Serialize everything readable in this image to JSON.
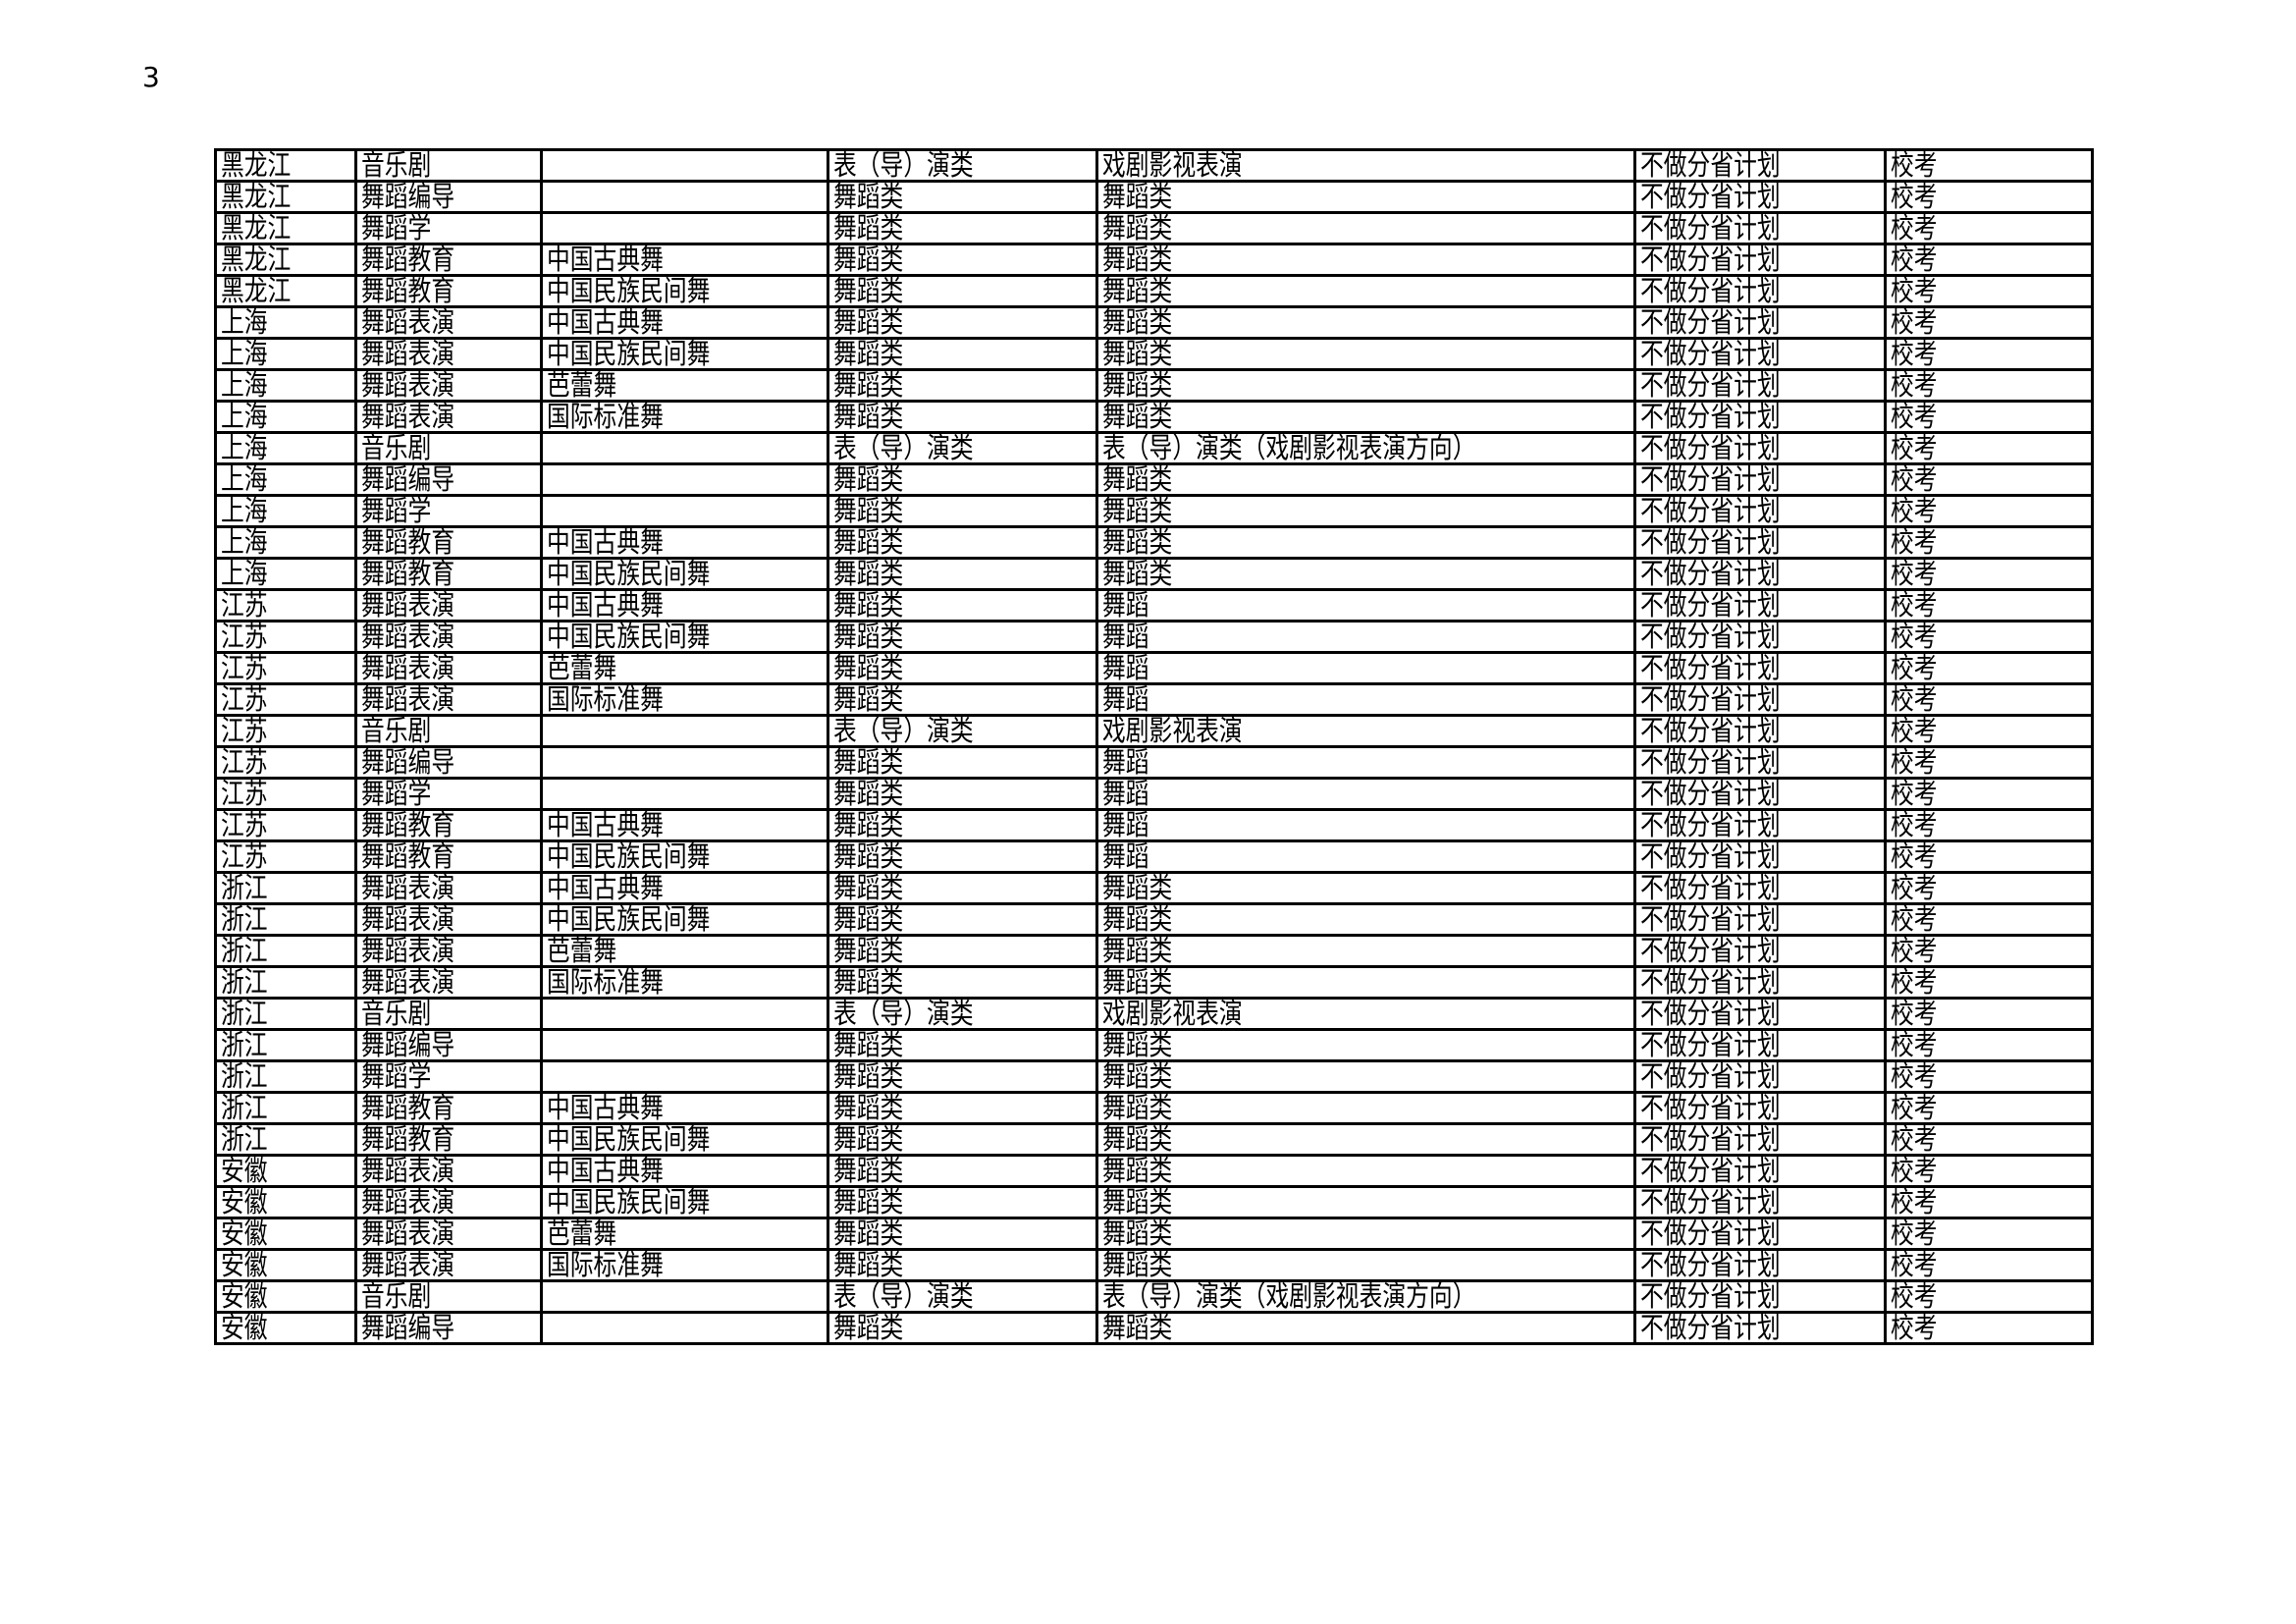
{
  "page_number": "3",
  "rows": [
    [
      "黑龙江",
      "音乐剧",
      "",
      "表（导）演类",
      "戏剧影视表演",
      "不做分省计划",
      "校考"
    ],
    [
      "黑龙江",
      "舞蹈编导",
      "",
      "舞蹈类",
      "舞蹈类",
      "不做分省计划",
      "校考"
    ],
    [
      "黑龙江",
      "舞蹈学",
      "",
      "舞蹈类",
      "舞蹈类",
      "不做分省计划",
      "校考"
    ],
    [
      "黑龙江",
      "舞蹈教育",
      "中国古典舞",
      "舞蹈类",
      "舞蹈类",
      "不做分省计划",
      "校考"
    ],
    [
      "黑龙江",
      "舞蹈教育",
      "中国民族民间舞",
      "舞蹈类",
      "舞蹈类",
      "不做分省计划",
      "校考"
    ],
    [
      "上海",
      "舞蹈表演",
      "中国古典舞",
      "舞蹈类",
      "舞蹈类",
      "不做分省计划",
      "校考"
    ],
    [
      "上海",
      "舞蹈表演",
      "中国民族民间舞",
      "舞蹈类",
      "舞蹈类",
      "不做分省计划",
      "校考"
    ],
    [
      "上海",
      "舞蹈表演",
      "芭蕾舞",
      "舞蹈类",
      "舞蹈类",
      "不做分省计划",
      "校考"
    ],
    [
      "上海",
      "舞蹈表演",
      "国际标准舞",
      "舞蹈类",
      "舞蹈类",
      "不做分省计划",
      "校考"
    ],
    [
      "上海",
      "音乐剧",
      "",
      "表（导）演类",
      "表（导）演类（戏剧影视表演方向）",
      "不做分省计划",
      "校考"
    ],
    [
      "上海",
      "舞蹈编导",
      "",
      "舞蹈类",
      "舞蹈类",
      "不做分省计划",
      "校考"
    ],
    [
      "上海",
      "舞蹈学",
      "",
      "舞蹈类",
      "舞蹈类",
      "不做分省计划",
      "校考"
    ],
    [
      "上海",
      "舞蹈教育",
      "中国古典舞",
      "舞蹈类",
      "舞蹈类",
      "不做分省计划",
      "校考"
    ],
    [
      "上海",
      "舞蹈教育",
      "中国民族民间舞",
      "舞蹈类",
      "舞蹈类",
      "不做分省计划",
      "校考"
    ],
    [
      "江苏",
      "舞蹈表演",
      "中国古典舞",
      "舞蹈类",
      "舞蹈",
      "不做分省计划",
      "校考"
    ],
    [
      "江苏",
      "舞蹈表演",
      "中国民族民间舞",
      "舞蹈类",
      "舞蹈",
      "不做分省计划",
      "校考"
    ],
    [
      "江苏",
      "舞蹈表演",
      "芭蕾舞",
      "舞蹈类",
      "舞蹈",
      "不做分省计划",
      "校考"
    ],
    [
      "江苏",
      "舞蹈表演",
      "国际标准舞",
      "舞蹈类",
      "舞蹈",
      "不做分省计划",
      "校考"
    ],
    [
      "江苏",
      "音乐剧",
      "",
      "表（导）演类",
      "戏剧影视表演",
      "不做分省计划",
      "校考"
    ],
    [
      "江苏",
      "舞蹈编导",
      "",
      "舞蹈类",
      "舞蹈",
      "不做分省计划",
      "校考"
    ],
    [
      "江苏",
      "舞蹈学",
      "",
      "舞蹈类",
      "舞蹈",
      "不做分省计划",
      "校考"
    ],
    [
      "江苏",
      "舞蹈教育",
      "中国古典舞",
      "舞蹈类",
      "舞蹈",
      "不做分省计划",
      "校考"
    ],
    [
      "江苏",
      "舞蹈教育",
      "中国民族民间舞",
      "舞蹈类",
      "舞蹈",
      "不做分省计划",
      "校考"
    ],
    [
      "浙江",
      "舞蹈表演",
      "中国古典舞",
      "舞蹈类",
      "舞蹈类",
      "不做分省计划",
      "校考"
    ],
    [
      "浙江",
      "舞蹈表演",
      "中国民族民间舞",
      "舞蹈类",
      "舞蹈类",
      "不做分省计划",
      "校考"
    ],
    [
      "浙江",
      "舞蹈表演",
      "芭蕾舞",
      "舞蹈类",
      "舞蹈类",
      "不做分省计划",
      "校考"
    ],
    [
      "浙江",
      "舞蹈表演",
      "国际标准舞",
      "舞蹈类",
      "舞蹈类",
      "不做分省计划",
      "校考"
    ],
    [
      "浙江",
      "音乐剧",
      "",
      "表（导）演类",
      "戏剧影视表演",
      "不做分省计划",
      "校考"
    ],
    [
      "浙江",
      "舞蹈编导",
      "",
      "舞蹈类",
      "舞蹈类",
      "不做分省计划",
      "校考"
    ],
    [
      "浙江",
      "舞蹈学",
      "",
      "舞蹈类",
      "舞蹈类",
      "不做分省计划",
      "校考"
    ],
    [
      "浙江",
      "舞蹈教育",
      "中国古典舞",
      "舞蹈类",
      "舞蹈类",
      "不做分省计划",
      "校考"
    ],
    [
      "浙江",
      "舞蹈教育",
      "中国民族民间舞",
      "舞蹈类",
      "舞蹈类",
      "不做分省计划",
      "校考"
    ],
    [
      "安徽",
      "舞蹈表演",
      "中国古典舞",
      "舞蹈类",
      "舞蹈类",
      "不做分省计划",
      "校考"
    ],
    [
      "安徽",
      "舞蹈表演",
      "中国民族民间舞",
      "舞蹈类",
      "舞蹈类",
      "不做分省计划",
      "校考"
    ],
    [
      "安徽",
      "舞蹈表演",
      "芭蕾舞",
      "舞蹈类",
      "舞蹈类",
      "不做分省计划",
      "校考"
    ],
    [
      "安徽",
      "舞蹈表演",
      "国际标准舞",
      "舞蹈类",
      "舞蹈类",
      "不做分省计划",
      "校考"
    ],
    [
      "安徽",
      "音乐剧",
      "",
      "表（导）演类",
      "表（导）演类（戏剧影视表演方向）",
      "不做分省计划",
      "校考"
    ],
    [
      "安徽",
      "舞蹈编导",
      "",
      "舞蹈类",
      "舞蹈类",
      "不做分省计划",
      "校考"
    ]
  ]
}
